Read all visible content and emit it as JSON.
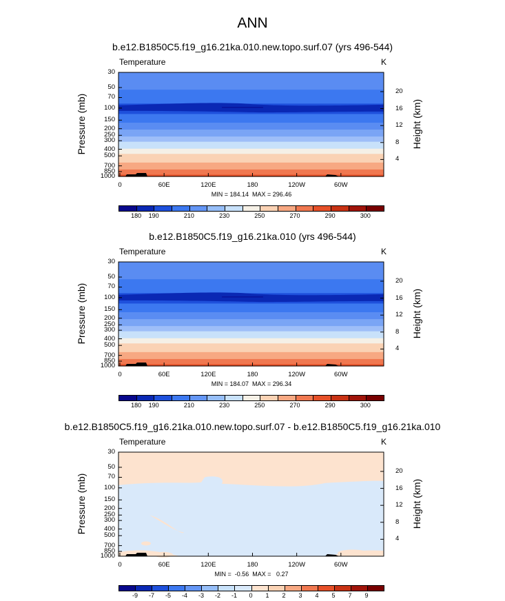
{
  "main_title": "ANN",
  "panels": [
    {
      "title": "b.e12.B1850C5.f19_g16.21ka.010.new.topo.surf.07 (yrs 496-544)",
      "variable": "Temperature",
      "units": "K",
      "minmax": "MIN = 184.14  MAX = 296.46",
      "colorbar_labels": [
        "180",
        "190",
        "210",
        "230",
        "250",
        "270",
        "290",
        "300"
      ]
    },
    {
      "title": "b.e12.B1850C5.f19_g16.21ka.010 (yrs 496-544)",
      "variable": "Temperature",
      "units": "K",
      "minmax": "MIN = 184.07  MAX = 296.34",
      "colorbar_labels": [
        "180",
        "190",
        "210",
        "230",
        "250",
        "270",
        "290",
        "300"
      ]
    },
    {
      "title": "b.e12.B1850C5.f19_g16.21ka.010.new.topo.surf.07 - b.e12.B1850C5.f19_g16.21ka.010",
      "variable": "Temperature",
      "units": "K",
      "minmax": "MIN =  -0.56  MAX =   0.27",
      "colorbar_labels": [
        "-9",
        "-7",
        "-5",
        "-4",
        "-3",
        "-2",
        "-1",
        "0",
        "1",
        "2",
        "3",
        "4",
        "5",
        "7",
        "9"
      ]
    }
  ],
  "axes": {
    "ylabel": "Pressure (mb)",
    "ylabel_right": "Height (km)",
    "yticks": [
      "30",
      "50",
      "70",
      "100",
      "150",
      "200",
      "250",
      "300",
      "400",
      "500",
      "700",
      "850",
      "1000"
    ],
    "yticks_right": [
      "20",
      "16",
      "12",
      "8",
      "4"
    ],
    "xticks": [
      "0",
      "60E",
      "120E",
      "180",
      "120W",
      "60W"
    ]
  },
  "colors": {
    "abs_scale": [
      "#08088c",
      "#0a28b4",
      "#1e50dc",
      "#3c78f0",
      "#6496f5",
      "#96bef8",
      "#c8e1fa",
      "#f5f0e6",
      "#fad2b4",
      "#f7a882",
      "#f07850",
      "#e65028",
      "#c83214",
      "#a0140a",
      "#780000"
    ],
    "diff_scale": [
      "#08088c",
      "#0a28b4",
      "#1e50dc",
      "#3c78f0",
      "#6496f5",
      "#96bef8",
      "#c8e1fa",
      "#d9e9fa",
      "#fde3cf",
      "#fad2b4",
      "#f7a882",
      "#f07850",
      "#e65028",
      "#c83214",
      "#a0140a",
      "#780000"
    ]
  },
  "chart_data": [
    {
      "type": "heatmap",
      "title": "b.e12.B1850C5.f19_g16.21ka.010.new.topo.surf.07 (yrs 496-544)",
      "variable": "Temperature (K)",
      "xlabel": "",
      "ylabel": "Pressure (mb)",
      "y_levels_mb": [
        30,
        50,
        70,
        100,
        150,
        200,
        250,
        300,
        400,
        500,
        700,
        850,
        1000
      ],
      "approx_zonal_mean_T": [
        218,
        212,
        205,
        196,
        205,
        218,
        228,
        238,
        252,
        262,
        275,
        285,
        292
      ],
      "min": 184.14,
      "max": 296.46,
      "colorbar_levels": [
        180,
        190,
        210,
        230,
        250,
        270,
        290,
        300
      ]
    },
    {
      "type": "heatmap",
      "title": "b.e12.B1850C5.f19_g16.21ka.010 (yrs 496-544)",
      "variable": "Temperature (K)",
      "xlabel": "",
      "ylabel": "Pressure (mb)",
      "y_levels_mb": [
        30,
        50,
        70,
        100,
        150,
        200,
        250,
        300,
        400,
        500,
        700,
        850,
        1000
      ],
      "approx_zonal_mean_T": [
        218,
        212,
        205,
        196,
        205,
        218,
        228,
        238,
        252,
        262,
        275,
        285,
        292
      ],
      "min": 184.07,
      "max": 296.34,
      "colorbar_levels": [
        180,
        190,
        210,
        230,
        250,
        270,
        290,
        300
      ]
    },
    {
      "type": "heatmap",
      "title": "b.e12.B1850C5.f19_g16.21ka.010.new.topo.surf.07 - b.e12.B1850C5.f19_g16.21ka.010",
      "variable": "Temperature difference (K)",
      "xlabel": "",
      "ylabel": "Pressure (mb)",
      "min": -0.56,
      "max": 0.27,
      "colorbar_levels": [
        -9,
        -7,
        -5,
        -4,
        -3,
        -2,
        -1,
        0,
        1,
        2,
        3,
        4,
        5,
        7,
        9
      ]
    }
  ]
}
